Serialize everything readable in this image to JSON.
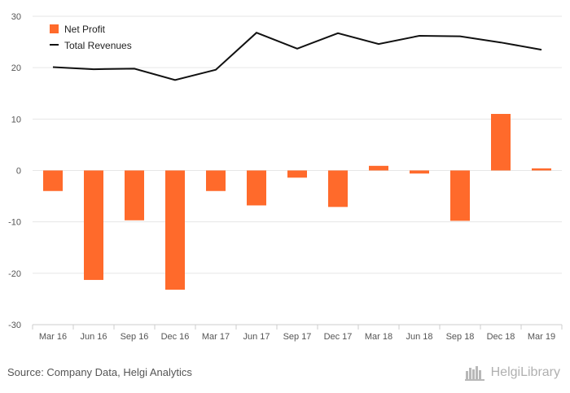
{
  "chart_data": {
    "type": "bar",
    "categories": [
      "Mar 16",
      "Jun 16",
      "Sep 16",
      "Dec 16",
      "Mar 17",
      "Jun 17",
      "Sep 17",
      "Dec 17",
      "Mar 18",
      "Jun 18",
      "Sep 18",
      "Dec 18",
      "Mar 19"
    ],
    "series": [
      {
        "name": "Net Profit",
        "type": "bar",
        "color": "#ff6a2b",
        "values": [
          -4.0,
          -21.3,
          -9.7,
          -23.2,
          -4.0,
          -6.8,
          -1.4,
          -7.1,
          0.9,
          -0.6,
          -9.8,
          11.0,
          0.4
        ]
      },
      {
        "name": "Total Revenues",
        "type": "line",
        "color": "#111111",
        "values": [
          20.1,
          19.7,
          19.8,
          17.6,
          19.6,
          26.8,
          23.7,
          26.7,
          24.6,
          26.2,
          26.1,
          24.9,
          23.5
        ]
      }
    ],
    "yticks": [
      30,
      20,
      10,
      0,
      -10,
      -20,
      -30
    ],
    "ylim": [
      -30,
      30
    ],
    "grid": true,
    "legend": "top-left"
  },
  "footer": {
    "source": "Source: Company Data, Helgi Analytics",
    "brand": "HelgiLibrary"
  },
  "colors": {
    "bar": "#ff6a2b",
    "line": "#111111",
    "grid": "#e6e6e6"
  }
}
